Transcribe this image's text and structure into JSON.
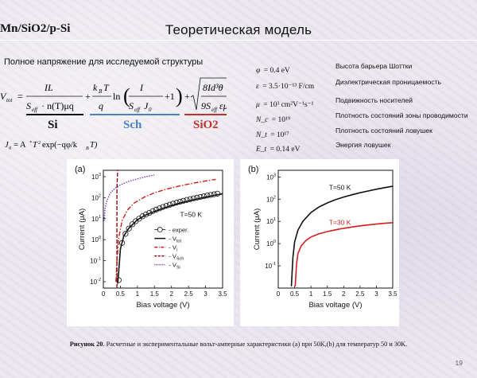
{
  "header": {
    "structure": "Mn/SiO2/p-Si",
    "title": "Теоретическая модель"
  },
  "voltage_label": "Полное напряжение для исследуемой структуры",
  "equation_labels": {
    "si": "Si",
    "sch": "Sch",
    "sio2": "SiO2"
  },
  "colors": {
    "si": "#111111",
    "sch": "#4a80c8",
    "sio2": "#c0302c"
  },
  "parameters": [
    {
      "symbol": "φ",
      "value": "= 0.4 eV",
      "description": "Высота барьера Шоттки"
    },
    {
      "symbol": "ε",
      "value": "= 3.5·10⁻¹³ F/cm",
      "description": "Диэлектрическая проницаемость"
    },
    {
      "symbol": "μ",
      "value": "= 10³ cm²V⁻¹s⁻¹",
      "description": "Подвижность носителей"
    },
    {
      "symbol": "N_c",
      "value": "= 10¹⁹",
      "description": "Плотность состояний зоны проводимости"
    },
    {
      "symbol": "N_t",
      "value": "= 10¹⁷",
      "description": "Плотность состояний ловушек"
    },
    {
      "symbol": "E_t",
      "value": "= 0.14 eV",
      "description": "Энергия ловушек"
    }
  ],
  "chart_data": [
    {
      "panel": "(a)",
      "type": "line",
      "xlabel": "Bias voltage (V)",
      "ylabel": "Current (μA)",
      "yscale": "log",
      "xlim": [
        0,
        3.5
      ],
      "ylim": [
        0.005,
        2000
      ],
      "xticks": [
        "0",
        "0.5",
        "1",
        "1.5",
        "2",
        "2.5",
        "3",
        "3.5"
      ],
      "yticks": [
        "10-2",
        "10-1",
        "100",
        "101",
        "102",
        "103"
      ],
      "annotation": "T=50 K",
      "legend": [
        "- exper.",
        "- Vtot",
        "- Vi",
        "- VSch",
        "- VSi"
      ],
      "series": [
        {
          "name": "exper.",
          "style": "circles",
          "color": "#111111",
          "x": [
            0.45,
            0.55,
            0.65,
            0.75,
            0.85,
            0.95,
            1.05,
            1.15,
            1.25,
            1.35,
            1.45,
            1.55,
            1.65,
            1.75,
            1.85,
            1.95,
            2.05,
            2.15,
            2.25,
            2.35,
            2.45,
            2.55,
            2.65,
            2.75,
            2.85,
            2.95,
            3.05,
            3.15,
            3.25,
            3.35
          ],
          "y": [
            0.012,
            0.7,
            1.9,
            3.4,
            5.4,
            7.6,
            10,
            13,
            16,
            19,
            23,
            27,
            31,
            36,
            41,
            46,
            52,
            58,
            64,
            71,
            78,
            85,
            93,
            100,
            108,
            117,
            126,
            135,
            145,
            155
          ]
        },
        {
          "name": "Vtot",
          "style": "solid",
          "color": "#111111",
          "x": [
            0.42,
            0.45,
            0.5,
            0.6,
            0.75,
            1.0,
            1.25,
            1.5,
            1.75,
            2.0,
            2.25,
            2.5,
            2.75,
            3.0,
            3.25,
            3.5
          ],
          "y": [
            0.008,
            0.03,
            0.35,
            1.5,
            3.5,
            9,
            15,
            22,
            31,
            42,
            55,
            70,
            87,
            106,
            128,
            152
          ]
        },
        {
          "name": "Vi",
          "style": "dashdot",
          "color": "#d31b1b",
          "x": [
            0.37,
            0.4,
            0.45,
            0.55,
            0.7,
            0.9,
            1.2,
            1.5,
            1.8,
            2.1,
            2.4,
            2.7,
            3.0,
            3.3
          ],
          "y": [
            0.01,
            0.1,
            1.2,
            8,
            25,
            55,
            105,
            170,
            240,
            320,
            410,
            510,
            620,
            740
          ]
        },
        {
          "name": "VSch",
          "style": "dashed",
          "color": "#8a1010",
          "x": [
            0.4,
            0.4,
            0.42
          ],
          "y": [
            0.005,
            300,
            2000
          ]
        },
        {
          "name": "VSi",
          "style": "dotted",
          "color": "#7a35c8",
          "x": [
            0.02,
            0.05,
            0.1,
            0.2,
            0.35,
            0.5,
            0.7,
            0.9,
            1.2,
            1.5
          ],
          "y": [
            8,
            30,
            70,
            160,
            290,
            400,
            560,
            700,
            950,
            1200
          ]
        }
      ]
    },
    {
      "panel": "(b)",
      "type": "line",
      "xlabel": "Bias voltage (V)",
      "ylabel": "Current (μA)",
      "yscale": "log",
      "xlim": [
        0,
        3.5
      ],
      "ylim": [
        0.01,
        2000
      ],
      "xticks": [
        "0",
        "0.5",
        "1",
        "1.5",
        "2",
        "2.5",
        "3",
        "3.5"
      ],
      "yticks": [
        "10-1",
        "100",
        "101",
        "102",
        "103"
      ],
      "series": [
        {
          "name": "T=50 K",
          "color": "#111111",
          "x": [
            0.4,
            0.42,
            0.45,
            0.5,
            0.6,
            0.75,
            1.0,
            1.25,
            1.5,
            1.75,
            2.0,
            2.25,
            2.5,
            2.75,
            3.0,
            3.25,
            3.5
          ],
          "y": [
            0.012,
            0.04,
            0.25,
            1.2,
            4,
            10,
            25,
            45,
            68,
            95,
            125,
            158,
            195,
            235,
            280,
            330,
            380
          ]
        },
        {
          "name": "T=30 K",
          "color": "#d81b1b",
          "x": [
            0.52,
            0.54,
            0.56,
            0.6,
            0.7,
            0.85,
            1.0,
            1.25,
            1.5,
            1.75,
            2.0,
            2.25,
            2.5,
            2.75,
            3.0,
            3.25,
            3.5
          ],
          "y": [
            0.012,
            0.04,
            0.12,
            0.35,
            0.8,
            1.4,
            2.0,
            2.8,
            3.5,
            4.2,
            4.9,
            5.6,
            6.3,
            6.9,
            7.6,
            8.2,
            8.8
          ]
        }
      ]
    }
  ],
  "caption": {
    "bold": "Рисунок 20",
    "text": ". Расчетные и экспериментальные вольт-амперные характеристики (a) при 50K,(b) для температур 50 и 30K."
  },
  "page_number": "19"
}
